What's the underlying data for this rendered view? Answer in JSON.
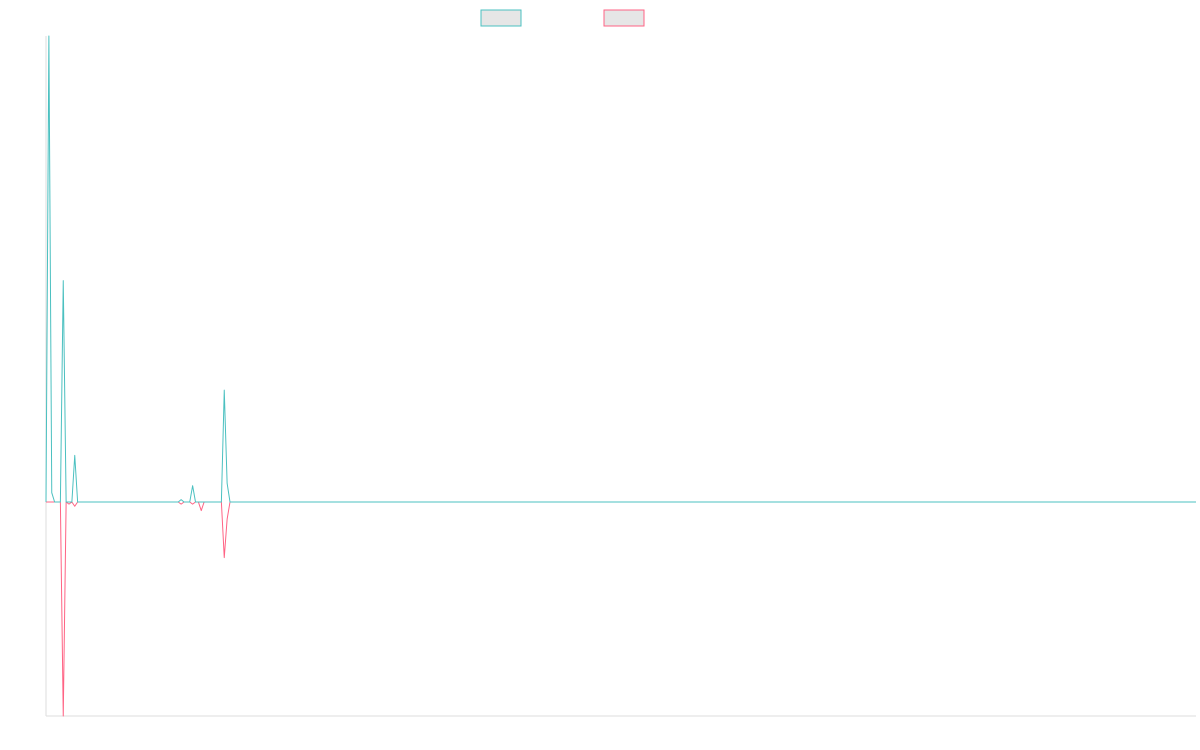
{
  "chart_data": {
    "type": "line",
    "title": "",
    "xlabel": "",
    "ylabel": "",
    "grid": false,
    "legend_position": "top-center",
    "x_count": 401,
    "ylim": [
      -100,
      100
    ],
    "colors": {
      "series_a": "#4bc0c0",
      "series_b": "#ff6384",
      "legend_fill": "#e6e6e6",
      "axis": "#dddddd"
    },
    "series": [
      {
        "points": [
          [
            0,
            0
          ],
          [
            1,
            200
          ],
          [
            2,
            4
          ],
          [
            3,
            0
          ],
          [
            4,
            0
          ],
          [
            5,
            0
          ],
          [
            6,
            95
          ],
          [
            7,
            0
          ],
          [
            8,
            0
          ],
          [
            9,
            0
          ],
          [
            10,
            20
          ],
          [
            11,
            0
          ],
          [
            46,
            0
          ],
          [
            47,
            1
          ],
          [
            48,
            0
          ],
          [
            49,
            0
          ],
          [
            50,
            0
          ],
          [
            51,
            7
          ],
          [
            52,
            0
          ],
          [
            53,
            0
          ],
          [
            54,
            0
          ],
          [
            55,
            0
          ],
          [
            61,
            0
          ],
          [
            62,
            48
          ],
          [
            63,
            8
          ],
          [
            64,
            0
          ],
          [
            400,
            0
          ]
        ]
      },
      {
        "points": [
          [
            0,
            0
          ],
          [
            1,
            0
          ],
          [
            2,
            0
          ],
          [
            3,
            0
          ],
          [
            4,
            0
          ],
          [
            5,
            0
          ],
          [
            6,
            -100
          ],
          [
            7,
            0
          ],
          [
            8,
            -1
          ],
          [
            9,
            0
          ],
          [
            10,
            -2
          ],
          [
            11,
            0
          ],
          [
            46,
            0
          ],
          [
            47,
            -1
          ],
          [
            48,
            0
          ],
          [
            49,
            0
          ],
          [
            50,
            0
          ],
          [
            51,
            -1
          ],
          [
            52,
            0
          ],
          [
            53,
            0
          ],
          [
            54,
            -4
          ],
          [
            55,
            0
          ],
          [
            61,
            0
          ],
          [
            62,
            -26
          ],
          [
            63,
            -8
          ],
          [
            64,
            0
          ],
          [
            400,
            0
          ]
        ]
      }
    ]
  }
}
